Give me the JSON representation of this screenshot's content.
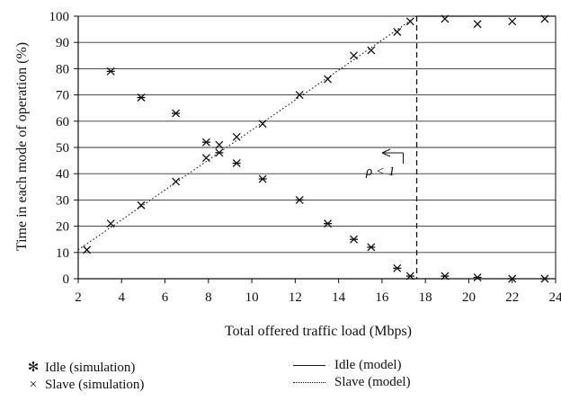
{
  "chart_data": {
    "type": "scatter",
    "xlabel": "Total offered traffic load (Mbps)",
    "ylabel": "Time in each mode of operation (%)",
    "xlim": [
      2,
      24
    ],
    "ylim": [
      0,
      100
    ],
    "xticks": [
      2,
      4,
      6,
      8,
      10,
      12,
      14,
      16,
      18,
      20,
      22,
      24
    ],
    "yticks": [
      0,
      10,
      20,
      30,
      40,
      50,
      60,
      70,
      80,
      90,
      100
    ],
    "grid": "horizontal",
    "series": [
      {
        "name": "Idle (simulation)",
        "marker": "asterisk",
        "x": [
          3.5,
          4.9,
          6.5,
          7.9,
          8.5,
          9.3,
          10.5,
          12.2,
          13.5,
          14.7,
          15.5,
          16.7,
          17.3,
          18.9,
          20.4,
          22.0,
          23.5
        ],
        "y": [
          79,
          69,
          63,
          52,
          48,
          44,
          38,
          30,
          21,
          15,
          12,
          4,
          1,
          1,
          0.5,
          0,
          0
        ]
      },
      {
        "name": "Slave (simulation)",
        "marker": "x",
        "x": [
          2.4,
          3.5,
          4.9,
          6.5,
          7.9,
          8.5,
          9.3,
          10.5,
          12.2,
          13.5,
          14.7,
          15.5,
          16.7,
          17.3,
          18.9,
          20.4,
          22.0,
          23.5
        ],
        "y": [
          11,
          21,
          28,
          37,
          46,
          51,
          54,
          59,
          70,
          76,
          85,
          87,
          94,
          98,
          99,
          97,
          98,
          99
        ]
      },
      {
        "name": "Idle (model)",
        "style": "solid",
        "x": [
          17.6,
          24
        ],
        "y": [
          100,
          100
        ]
      },
      {
        "name": "Slave (model)",
        "style": "dotted",
        "x": [
          2,
          17.6
        ],
        "y": [
          11,
          100
        ]
      }
    ],
    "annotations": [
      {
        "text": "ρ < 1",
        "type": "vertical-dashed-line",
        "x": 17.6,
        "arrow": "left"
      }
    ],
    "legend_position": "bottom"
  },
  "legend": {
    "idle_sim": "Idle (simulation)",
    "slave_sim": "Slave (simulation)",
    "idle_model": "Idle (model)",
    "slave_model": "Slave (model)",
    "asterisk_symbol": "✻",
    "x_symbol": "×"
  }
}
